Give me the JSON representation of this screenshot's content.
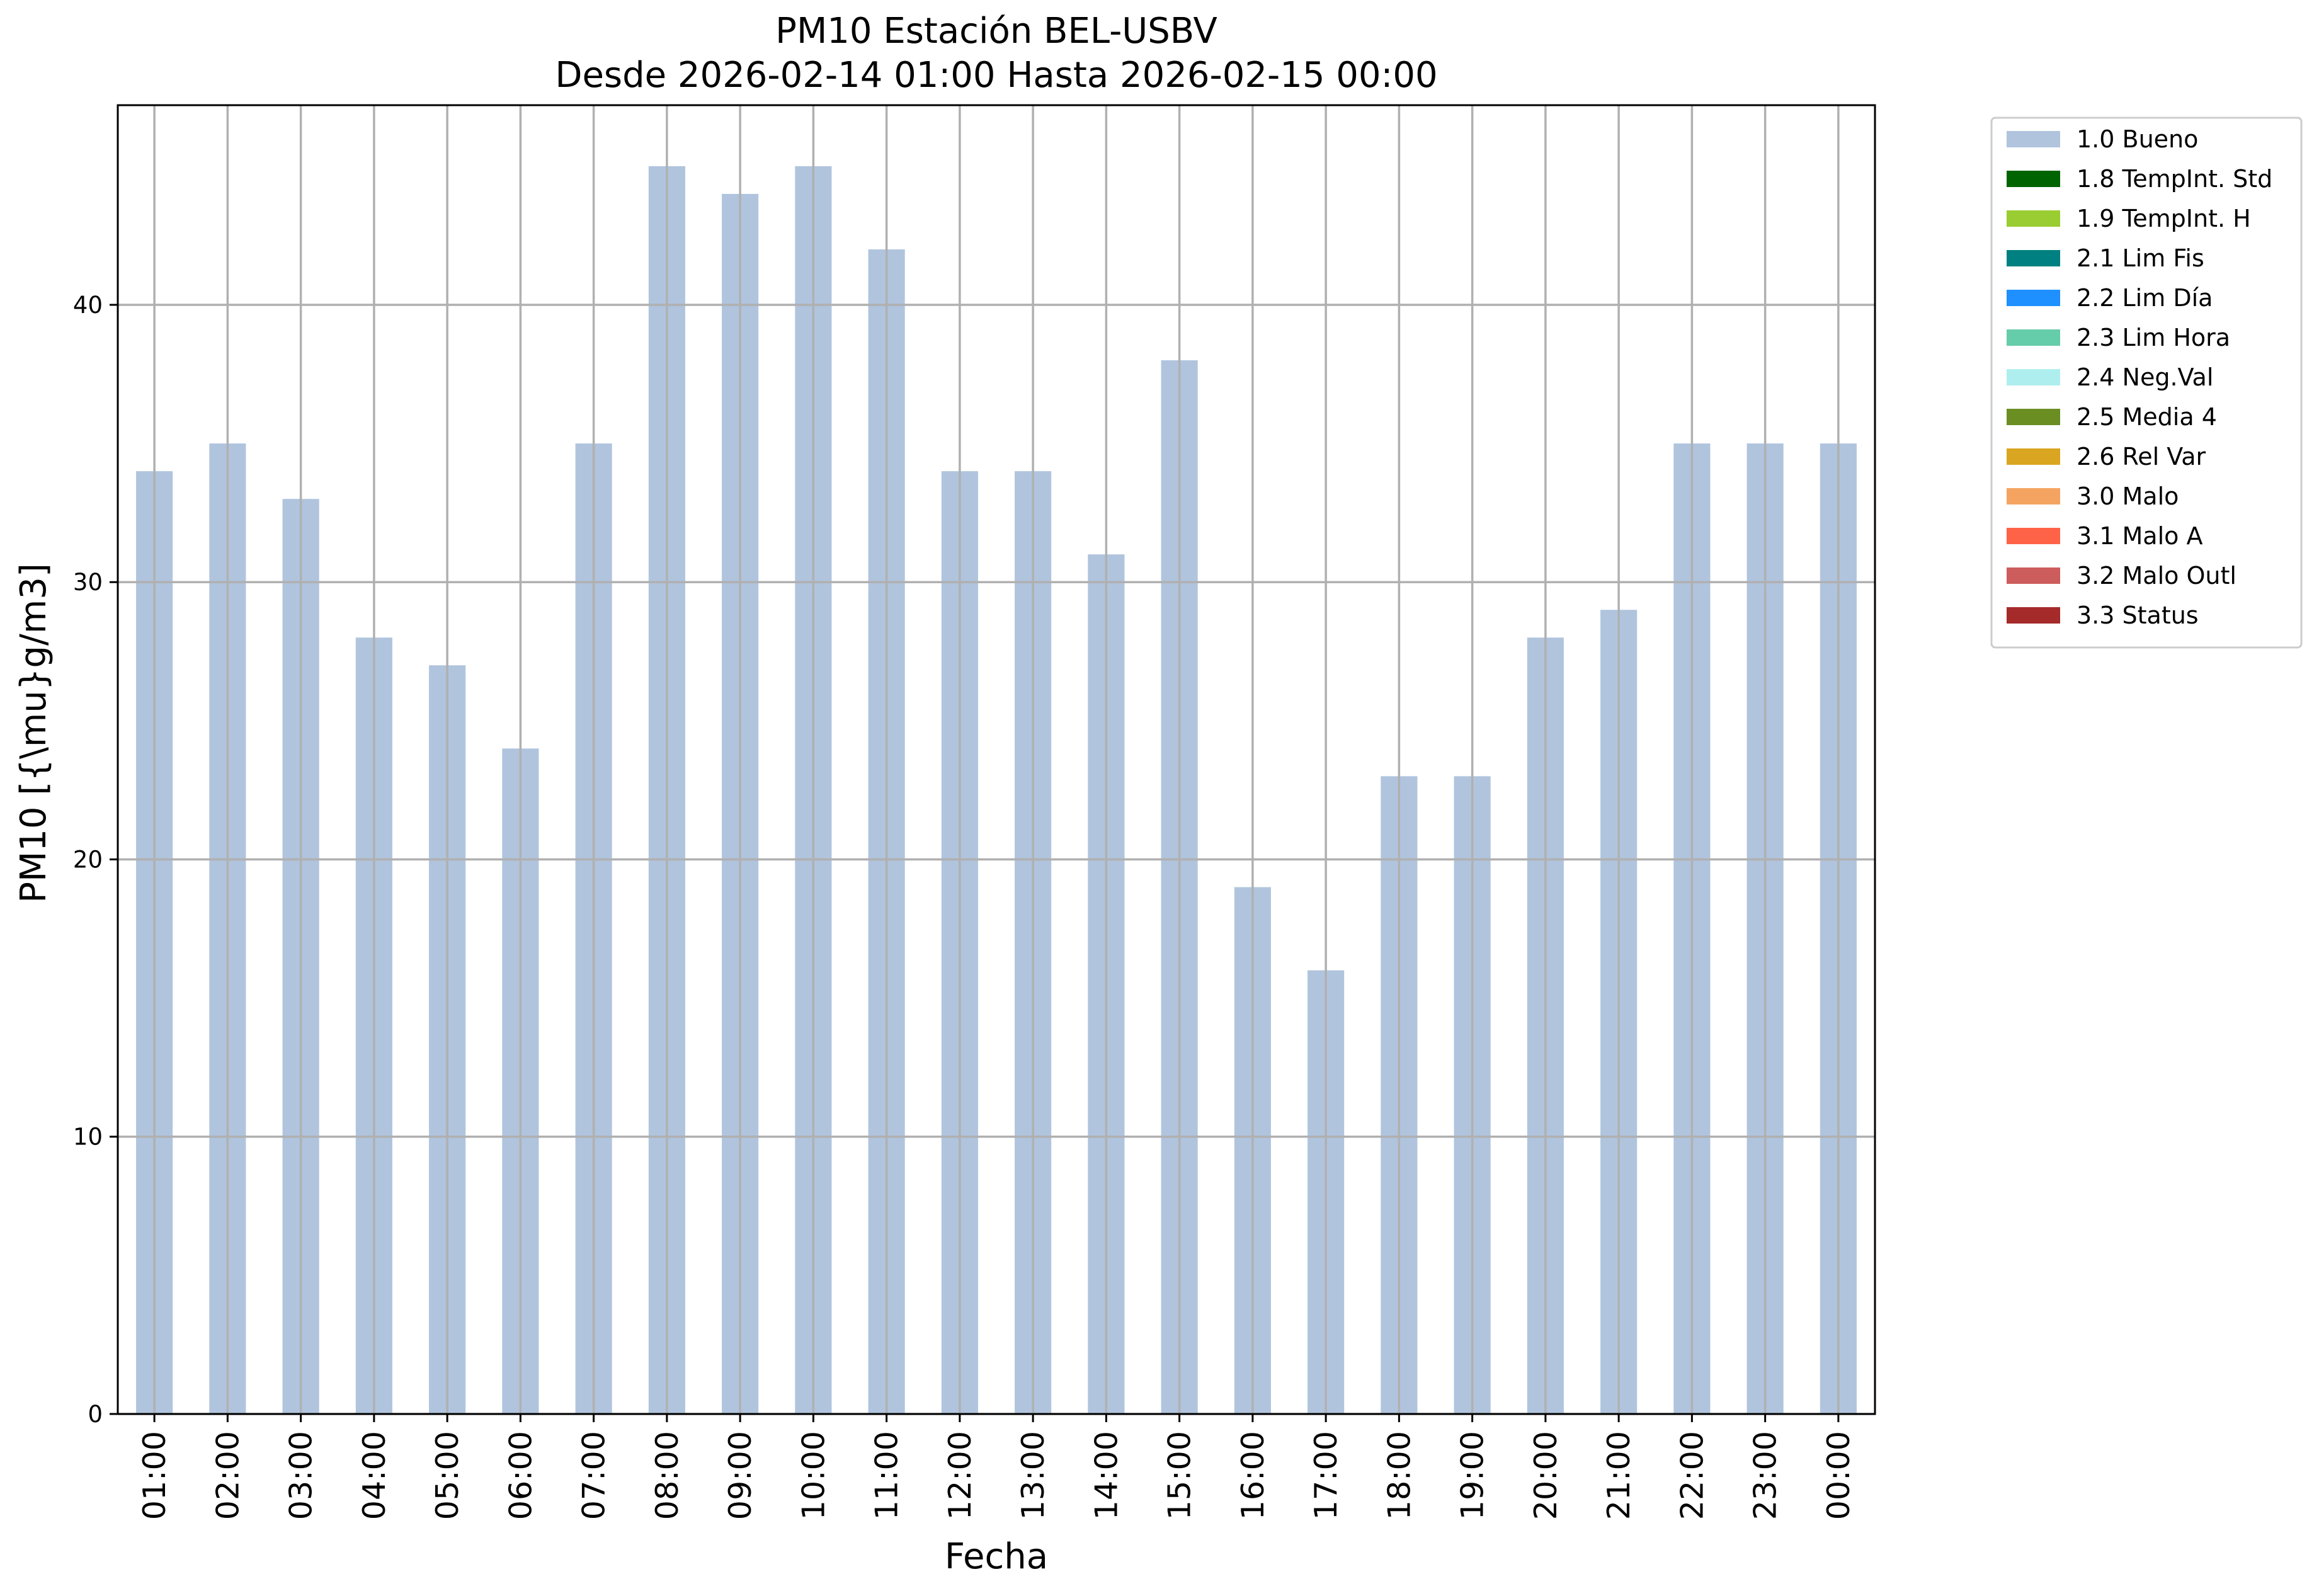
{
  "chart_data": {
    "type": "bar",
    "title": "PM10 Estación BEL-USBV",
    "subtitle": "Desde 2026-02-14 01:00 Hasta 2026-02-15 00:00",
    "xlabel": "Fecha",
    "ylabel": "PM10 [{\\mu}g/m3]",
    "ylim": [
      0,
      47.2
    ],
    "yticks": [
      0,
      10,
      20,
      30,
      40
    ],
    "grid": true,
    "legend_position": "outside-right",
    "categories": [
      "01:00",
      "02:00",
      "03:00",
      "04:00",
      "05:00",
      "06:00",
      "07:00",
      "08:00",
      "09:00",
      "10:00",
      "11:00",
      "12:00",
      "13:00",
      "14:00",
      "15:00",
      "16:00",
      "17:00",
      "18:00",
      "19:00",
      "20:00",
      "21:00",
      "22:00",
      "23:00",
      "00:00"
    ],
    "series": [
      {
        "name": "1.0 Bueno",
        "color": "#b0c4de",
        "values": [
          34,
          35,
          33,
          28,
          27,
          24,
          35,
          45,
          44,
          45,
          42,
          34,
          34,
          31,
          38,
          19,
          16,
          23,
          23,
          28,
          29,
          35,
          35,
          35
        ]
      }
    ],
    "legend": [
      {
        "label": "1.0 Bueno",
        "color": "#b0c4de"
      },
      {
        "label": "1.8 TempInt. Std",
        "color": "#006400"
      },
      {
        "label": "1.9 TempInt. H",
        "color": "#9acd32"
      },
      {
        "label": "2.1 Lim Fis",
        "color": "#008080"
      },
      {
        "label": "2.2 Lim Día",
        "color": "#1e90ff"
      },
      {
        "label": "2.3 Lim Hora",
        "color": "#66cdaa"
      },
      {
        "label": "2.4 Neg.Val",
        "color": "#afeeee"
      },
      {
        "label": "2.5 Media 4",
        "color": "#6b8e23"
      },
      {
        "label": "2.6 Rel Var",
        "color": "#daa520"
      },
      {
        "label": "3.0 Malo",
        "color": "#f4a460"
      },
      {
        "label": "3.1 Malo A",
        "color": "#ff6347"
      },
      {
        "label": "3.2 Malo Outl",
        "color": "#cd5c5c"
      },
      {
        "label": "3.3 Status",
        "color": "#a52a2a"
      }
    ]
  }
}
